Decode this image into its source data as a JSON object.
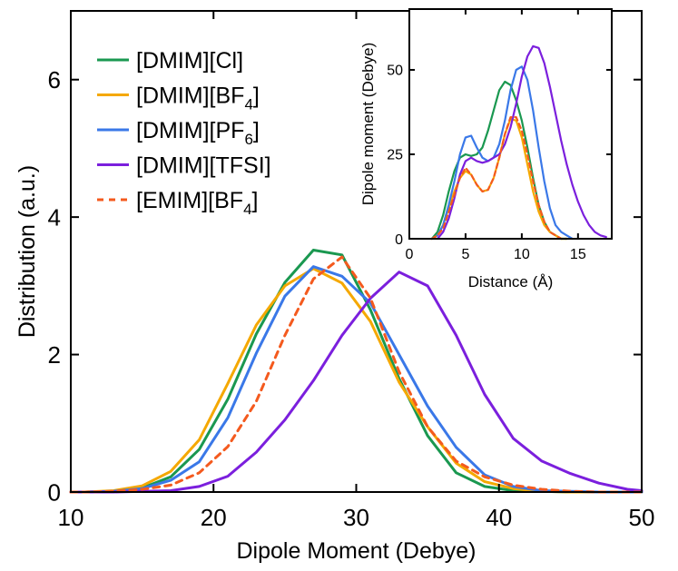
{
  "chart_data": [
    {
      "id": "main",
      "type": "line",
      "title": "",
      "xlabel": "Dipole Moment (Debye)",
      "ylabel": "Distribution (a.u.)",
      "xlim": [
        10,
        50
      ],
      "ylim": [
        0,
        7
      ],
      "xticks": [
        10,
        20,
        30,
        40,
        50
      ],
      "yticks": [
        0,
        2,
        4,
        6
      ],
      "grid": false,
      "legend_position": "top-left",
      "series": [
        {
          "name": "[DMIM][Cl]",
          "label_main": "[DMIM][Cl]",
          "label_sub": "",
          "label_tail": "",
          "color": "#1a9850",
          "dash": "solid",
          "x": [
            10,
            11,
            13,
            15,
            17,
            19,
            21,
            23,
            25,
            27,
            29,
            31,
            33,
            35,
            37,
            39,
            41,
            43,
            45,
            47,
            49,
            50
          ],
          "y": [
            0,
            0,
            0.01,
            0.06,
            0.22,
            0.62,
            1.35,
            2.3,
            3.05,
            3.52,
            3.45,
            2.65,
            1.65,
            0.82,
            0.28,
            0.08,
            0.02,
            0.01,
            0,
            0,
            0,
            0
          ]
        },
        {
          "name": "[DMIM][BF4]",
          "label_main": "[DMIM][BF",
          "label_sub": "4",
          "label_tail": "]",
          "color": "#f5a800",
          "dash": "solid",
          "x": [
            10,
            11,
            13,
            15,
            17,
            19,
            21,
            23,
            25,
            27,
            29,
            31,
            33,
            35,
            37,
            39,
            41,
            43,
            45,
            47,
            49,
            50
          ],
          "y": [
            0,
            0,
            0.02,
            0.09,
            0.3,
            0.76,
            1.58,
            2.43,
            3.0,
            3.25,
            3.04,
            2.48,
            1.6,
            0.95,
            0.42,
            0.15,
            0.05,
            0.01,
            0,
            0,
            0,
            0
          ]
        },
        {
          "name": "[DMIM][PF6]",
          "label_main": "[DMIM][PF",
          "label_sub": "6",
          "label_tail": "]",
          "color": "#3a78e8",
          "dash": "solid",
          "x": [
            10,
            11,
            13,
            15,
            17,
            19,
            21,
            23,
            25,
            27,
            29,
            31,
            33,
            35,
            37,
            39,
            41,
            43,
            45,
            47,
            49,
            50
          ],
          "y": [
            0,
            0,
            0.01,
            0.05,
            0.17,
            0.44,
            1.08,
            2.02,
            2.85,
            3.28,
            3.14,
            2.75,
            2.0,
            1.25,
            0.65,
            0.25,
            0.08,
            0.02,
            0.01,
            0,
            0,
            0
          ]
        },
        {
          "name": "[DMIM][TFSI]",
          "label_main": "[DMIM][TFSI]",
          "label_sub": "",
          "label_tail": "",
          "color": "#7b1fdd",
          "dash": "solid",
          "x": [
            10,
            11,
            13,
            15,
            17,
            19,
            21,
            23,
            25,
            27,
            29,
            31,
            33,
            35,
            37,
            39,
            41,
            43,
            45,
            47,
            49,
            50
          ],
          "y": [
            0,
            0,
            0,
            0.01,
            0.02,
            0.08,
            0.23,
            0.58,
            1.05,
            1.62,
            2.28,
            2.82,
            3.2,
            3.0,
            2.28,
            1.42,
            0.78,
            0.45,
            0.27,
            0.13,
            0.04,
            0.02
          ]
        },
        {
          "name": "[EMIM][BF4]",
          "label_main": "[EMIM][BF",
          "label_sub": "4",
          "label_tail": "]",
          "color": "#f45a1e",
          "dash": "dashed",
          "x": [
            10,
            11,
            13,
            15,
            17,
            19,
            21,
            23,
            25,
            27,
            29,
            31,
            33,
            35,
            37,
            39,
            41,
            43,
            45,
            47,
            49,
            50
          ],
          "y": [
            0,
            0,
            0.01,
            0.04,
            0.1,
            0.28,
            0.66,
            1.32,
            2.28,
            3.1,
            3.42,
            2.82,
            1.75,
            0.95,
            0.45,
            0.22,
            0.1,
            0.04,
            0.01,
            0,
            0,
            0
          ]
        }
      ]
    },
    {
      "id": "inset",
      "type": "line",
      "title": "",
      "xlabel": "Distance (Å)",
      "ylabel": "Dipole moment (Debye)",
      "xlim": [
        0,
        18
      ],
      "ylim": [
        0,
        68
      ],
      "xticks": [
        0,
        5,
        10,
        15
      ],
      "yticks": [
        0,
        25,
        50
      ],
      "grid": false,
      "series": [
        {
          "name": "[DMIM][Cl]",
          "color": "#1a9850",
          "dash": "solid",
          "x": [
            2,
            2.5,
            3,
            3.5,
            4,
            4.5,
            5,
            5.5,
            6,
            6.5,
            7,
            7.5,
            8,
            8.5,
            9,
            9.5,
            10,
            10.5,
            11,
            11.5,
            12,
            12.5,
            13,
            13.5,
            14
          ],
          "y": [
            0,
            2,
            7,
            14,
            20,
            24,
            25,
            24.5,
            25,
            27,
            32,
            38,
            44,
            46.5,
            45.5,
            41,
            35,
            27,
            18,
            10,
            5,
            2,
            1,
            0,
            0
          ]
        },
        {
          "name": "[DMIM][BF4]",
          "color": "#f5a800",
          "dash": "solid",
          "x": [
            2,
            2.5,
            3,
            3.5,
            4,
            4.5,
            5,
            5.5,
            6,
            6.5,
            7,
            7.5,
            8,
            8.5,
            9,
            9.5,
            10,
            10.5,
            11,
            11.5,
            12,
            12.5,
            13,
            13.5,
            14
          ],
          "y": [
            0,
            1,
            4,
            9,
            14,
            18,
            20,
            19,
            16,
            14,
            14.5,
            18,
            24,
            31,
            35.5,
            35,
            30,
            22,
            14,
            8,
            4,
            2,
            1,
            0,
            0
          ]
        },
        {
          "name": "[DMIM][PF6]",
          "color": "#3a78e8",
          "dash": "solid",
          "x": [
            2,
            2.5,
            3,
            3.5,
            4,
            4.5,
            5,
            5.5,
            6,
            6.5,
            7,
            7.5,
            8,
            8.5,
            9,
            9.5,
            10,
            10.5,
            11,
            11.5,
            12,
            12.5,
            13,
            13.5,
            14,
            14.5
          ],
          "y": [
            0,
            1,
            4,
            10,
            17,
            25,
            30,
            30.5,
            27,
            24,
            23,
            24,
            28,
            35,
            44,
            50,
            51,
            47,
            38,
            27,
            17,
            9,
            4,
            2,
            1,
            0
          ]
        },
        {
          "name": "[DMIM][TFSI]",
          "color": "#7b1fdd",
          "dash": "solid",
          "x": [
            2.5,
            3,
            3.5,
            4,
            4.5,
            5,
            5.5,
            6,
            6.5,
            7,
            7.5,
            8,
            8.5,
            9,
            9.5,
            10,
            10.5,
            11,
            11.5,
            12,
            12.5,
            13,
            13.5,
            14,
            14.5,
            15,
            15.5,
            16,
            16.5,
            17,
            17.5
          ],
          "y": [
            0,
            2,
            6,
            12,
            19,
            23,
            24,
            23,
            22.5,
            23,
            24,
            25,
            28,
            33,
            40,
            48,
            54,
            57,
            56.5,
            52,
            45,
            37,
            29,
            22,
            16,
            11,
            7,
            4,
            2,
            1,
            0.5
          ]
        },
        {
          "name": "[EMIM][BF4]",
          "color": "#f45a1e",
          "dash": "dashed",
          "x": [
            2,
            2.5,
            3,
            3.5,
            4,
            4.5,
            5,
            5.5,
            6,
            6.5,
            7,
            7.5,
            8,
            8.5,
            9,
            9.5,
            10,
            10.5,
            11,
            11.5,
            12,
            12.5,
            13,
            13.5,
            14
          ],
          "y": [
            0,
            1,
            3,
            8,
            13,
            18,
            21,
            19,
            16,
            14,
            14.5,
            18,
            24,
            31,
            36,
            36,
            32,
            25,
            17,
            10,
            5,
            2,
            1,
            0,
            0
          ]
        }
      ]
    }
  ]
}
